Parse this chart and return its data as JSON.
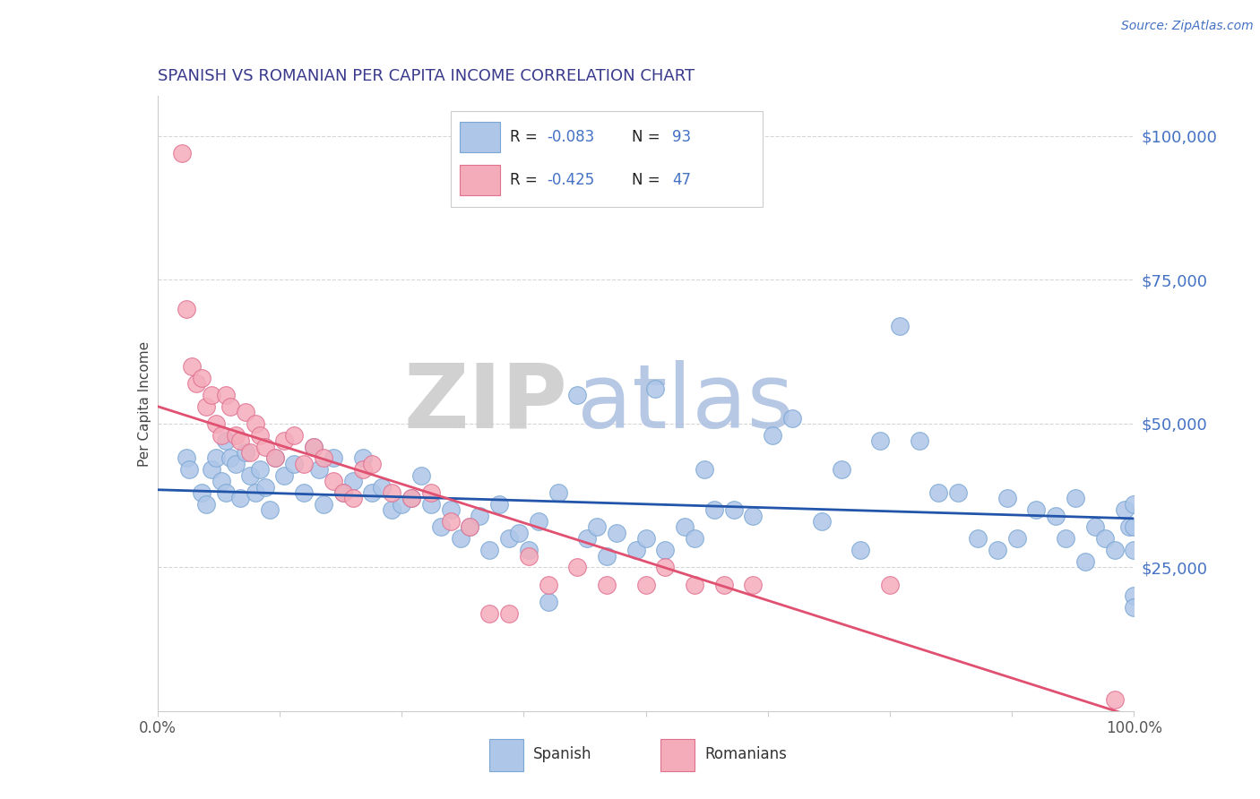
{
  "title": "SPANISH VS ROMANIAN PER CAPITA INCOME CORRELATION CHART",
  "source": "Source: ZipAtlas.com",
  "ylabel": "Per Capita Income",
  "title_color": "#3A3A8C",
  "title_fontsize": 13,
  "axis_color": "#4472C4",
  "source_color": "#4472C4",
  "watermark_zip": "ZIP",
  "watermark_atlas": "atlas",
  "watermark_zip_color": "#CCCCCC",
  "watermark_atlas_color": "#AABFE0",
  "spanish_color": "#AEC6E8",
  "romanian_color": "#F4ACBA",
  "spanish_edge_color": "#7BA7D4",
  "romanian_edge_color": "#E07090",
  "spanish_line_color": "#2255AA",
  "romanian_line_color": "#E05070",
  "xlim": [
    0,
    100
  ],
  "ylim": [
    0,
    107000
  ],
  "grid_color": "#CCCCCC",
  "spine_color": "#CCCCCC",
  "spanish_x": [
    3.0,
    3.2,
    4.5,
    5.0,
    5.5,
    6.0,
    6.5,
    7.0,
    7.0,
    7.5,
    8.0,
    8.5,
    9.0,
    9.5,
    10.0,
    10.5,
    11.0,
    11.5,
    12.0,
    13.0,
    14.0,
    15.0,
    16.0,
    16.5,
    17.0,
    18.0,
    19.0,
    20.0,
    21.0,
    22.0,
    23.0,
    24.0,
    25.0,
    26.0,
    27.0,
    28.0,
    29.0,
    30.0,
    31.0,
    32.0,
    33.0,
    34.0,
    35.0,
    36.0,
    37.0,
    38.0,
    39.0,
    40.0,
    41.0,
    43.0,
    44.0,
    45.0,
    46.0,
    47.0,
    49.0,
    50.0,
    51.0,
    52.0,
    54.0,
    55.0,
    56.0,
    57.0,
    59.0,
    61.0,
    63.0,
    65.0,
    68.0,
    70.0,
    72.0,
    74.0,
    76.0,
    78.0,
    80.0,
    82.0,
    84.0,
    86.0,
    87.0,
    88.0,
    90.0,
    92.0,
    93.0,
    94.0,
    95.0,
    96.0,
    97.0,
    98.0,
    99.0,
    99.5,
    100.0,
    100.0,
    100.0,
    100.0,
    100.0
  ],
  "spanish_y": [
    44000,
    42000,
    38000,
    36000,
    42000,
    44000,
    40000,
    47000,
    38000,
    44000,
    43000,
    37000,
    45000,
    41000,
    38000,
    42000,
    39000,
    35000,
    44000,
    41000,
    43000,
    38000,
    46000,
    42000,
    36000,
    44000,
    38000,
    40000,
    44000,
    38000,
    39000,
    35000,
    36000,
    37000,
    41000,
    36000,
    32000,
    35000,
    30000,
    32000,
    34000,
    28000,
    36000,
    30000,
    31000,
    28000,
    33000,
    19000,
    38000,
    55000,
    30000,
    32000,
    27000,
    31000,
    28000,
    30000,
    56000,
    28000,
    32000,
    30000,
    42000,
    35000,
    35000,
    34000,
    48000,
    51000,
    33000,
    42000,
    28000,
    47000,
    67000,
    47000,
    38000,
    38000,
    30000,
    28000,
    37000,
    30000,
    35000,
    34000,
    30000,
    37000,
    26000,
    32000,
    30000,
    28000,
    35000,
    32000,
    36000,
    32000,
    28000,
    20000,
    18000
  ],
  "romanian_x": [
    2.5,
    3.0,
    3.5,
    4.0,
    4.5,
    5.0,
    5.5,
    6.0,
    6.5,
    7.0,
    7.5,
    8.0,
    8.5,
    9.0,
    9.5,
    10.0,
    10.5,
    11.0,
    12.0,
    13.0,
    14.0,
    15.0,
    16.0,
    17.0,
    18.0,
    19.0,
    20.0,
    21.0,
    22.0,
    24.0,
    26.0,
    28.0,
    30.0,
    32.0,
    34.0,
    36.0,
    38.0,
    40.0,
    43.0,
    46.0,
    50.0,
    52.0,
    55.0,
    58.0,
    61.0,
    75.0,
    98.0
  ],
  "romanian_y": [
    97000,
    70000,
    60000,
    57000,
    58000,
    53000,
    55000,
    50000,
    48000,
    55000,
    53000,
    48000,
    47000,
    52000,
    45000,
    50000,
    48000,
    46000,
    44000,
    47000,
    48000,
    43000,
    46000,
    44000,
    40000,
    38000,
    37000,
    42000,
    43000,
    38000,
    37000,
    38000,
    33000,
    32000,
    17000,
    17000,
    27000,
    22000,
    25000,
    22000,
    22000,
    25000,
    22000,
    22000,
    22000,
    22000,
    2000
  ],
  "spanish_intercept": 38500,
  "spanish_slope": -50,
  "romanian_intercept": 53000,
  "romanian_slope": -540
}
